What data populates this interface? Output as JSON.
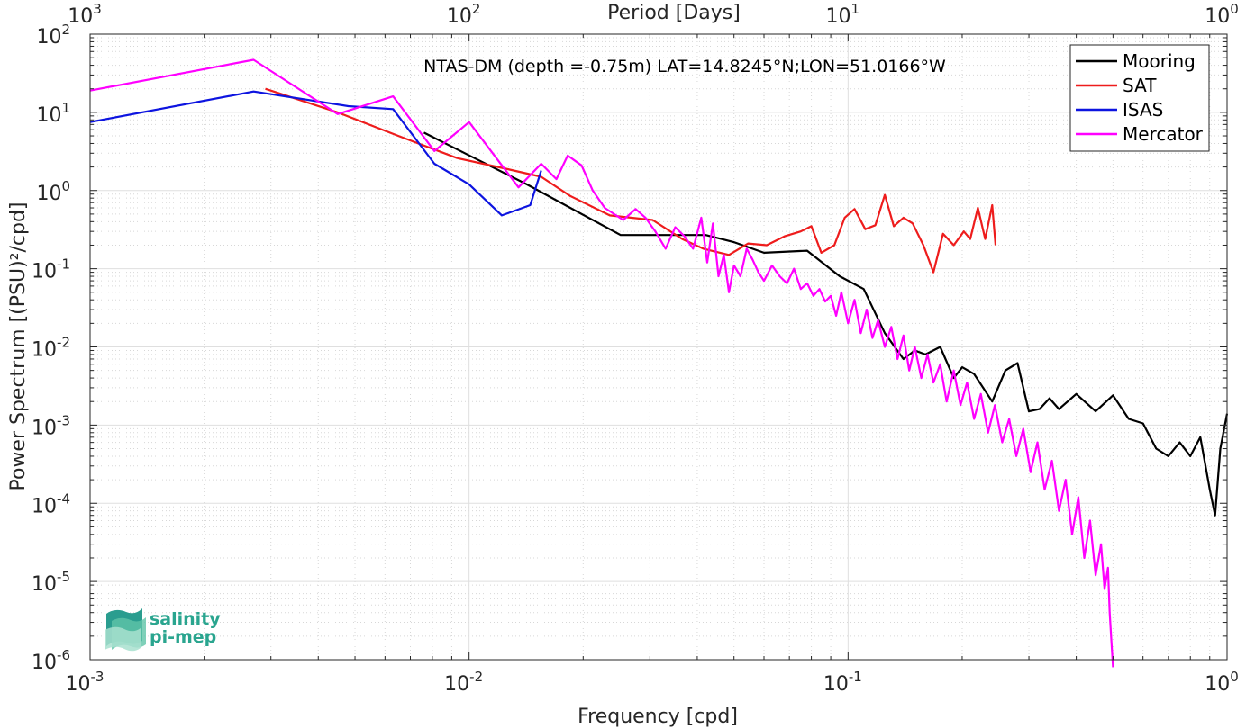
{
  "chart_data": {
    "type": "line",
    "title": "NTAS-DM (depth =-0.75m) LAT=14.8245°N;LON=51.0166°W",
    "xlabel": "Frequency [cpd]",
    "ylabel": "Power Spectrum [(PSU)²/cpd]",
    "top_axis_label": "Period [Days]",
    "x_scale": "log",
    "y_scale": "log",
    "xlim": [
      0.001,
      1
    ],
    "ylim": [
      1e-06,
      100
    ],
    "x_ticks": [
      {
        "base": "10",
        "exp": "-3"
      },
      {
        "base": "10",
        "exp": "-2"
      },
      {
        "base": "10",
        "exp": "-1"
      },
      {
        "base": "10",
        "exp": "0"
      }
    ],
    "top_ticks": [
      {
        "base": "10",
        "exp": "3"
      },
      {
        "base": "10",
        "exp": "2"
      },
      {
        "base": "10",
        "exp": "1"
      },
      {
        "base": "10",
        "exp": "0"
      }
    ],
    "y_ticks": [
      {
        "base": "10",
        "exp": "-6"
      },
      {
        "base": "10",
        "exp": "-5"
      },
      {
        "base": "10",
        "exp": "-4"
      },
      {
        "base": "10",
        "exp": "-3"
      },
      {
        "base": "10",
        "exp": "-2"
      },
      {
        "base": "10",
        "exp": "-1"
      },
      {
        "base": "10",
        "exp": "0"
      },
      {
        "base": "10",
        "exp": "1"
      },
      {
        "base": "10",
        "exp": "2"
      }
    ],
    "grid": true,
    "legend_position": "top-right",
    "series": [
      {
        "name": "Mooring",
        "color": "#000000",
        "x": [
          0.0076,
          0.0105,
          0.0142,
          0.0251,
          0.0421,
          0.0498,
          0.06,
          0.078,
          0.095,
          0.11,
          0.125,
          0.14,
          0.15,
          0.16,
          0.175,
          0.19,
          0.2,
          0.215,
          0.24,
          0.26,
          0.28,
          0.3,
          0.32,
          0.34,
          0.36,
          0.4,
          0.45,
          0.5,
          0.55,
          0.6,
          0.65,
          0.7,
          0.75,
          0.8,
          0.85,
          0.9,
          0.93,
          0.96,
          1.0
        ],
        "y": [
          5.5,
          2.5,
          1.2,
          0.27,
          0.27,
          0.22,
          0.16,
          0.17,
          0.08,
          0.055,
          0.015,
          0.007,
          0.009,
          0.008,
          0.01,
          0.004,
          0.0055,
          0.0045,
          0.002,
          0.005,
          0.0062,
          0.0015,
          0.0016,
          0.0022,
          0.0016,
          0.0025,
          0.0015,
          0.0024,
          0.0012,
          0.00105,
          0.0005,
          0.0004,
          0.0006,
          0.0004,
          0.0007,
          0.00015,
          7e-05,
          0.0005,
          0.0014
        ]
      },
      {
        "name": "SAT",
        "color": "#ee1c1c",
        "x": [
          0.0029,
          0.0045,
          0.0065,
          0.0093,
          0.0125,
          0.0155,
          0.0185,
          0.0235,
          0.0305,
          0.0365,
          0.0415,
          0.0485,
          0.0545,
          0.061,
          0.068,
          0.075,
          0.08,
          0.085,
          0.092,
          0.098,
          0.104,
          0.111,
          0.118,
          0.125,
          0.132,
          0.14,
          0.148,
          0.158,
          0.168,
          0.178,
          0.19,
          0.202,
          0.21,
          0.22,
          0.23,
          0.24,
          0.245
        ],
        "y": [
          20,
          10,
          5,
          2.6,
          1.9,
          1.5,
          0.85,
          0.48,
          0.42,
          0.24,
          0.18,
          0.15,
          0.21,
          0.2,
          0.26,
          0.3,
          0.35,
          0.16,
          0.2,
          0.45,
          0.58,
          0.32,
          0.36,
          0.88,
          0.35,
          0.45,
          0.38,
          0.2,
          0.09,
          0.28,
          0.2,
          0.3,
          0.24,
          0.6,
          0.24,
          0.65,
          0.2
        ]
      },
      {
        "name": "ISAS",
        "color": "#0d14e0",
        "x": [
          0.001,
          0.0027,
          0.0048,
          0.0063,
          0.0081,
          0.01,
          0.0122,
          0.0145,
          0.0155
        ],
        "y": [
          7.5,
          18.5,
          12,
          11,
          2.2,
          1.2,
          0.48,
          0.65,
          1.8
        ]
      },
      {
        "name": "Mercator",
        "color": "#ff00ff",
        "x": [
          0.001,
          0.0027,
          0.0045,
          0.0063,
          0.0081,
          0.01,
          0.0118,
          0.0135,
          0.0155,
          0.017,
          0.0182,
          0.0198,
          0.0212,
          0.0228,
          0.0255,
          0.0275,
          0.0292,
          0.031,
          0.033,
          0.035,
          0.037,
          0.039,
          0.041,
          0.0425,
          0.044,
          0.0455,
          0.047,
          0.0485,
          0.05,
          0.052,
          0.054,
          0.056,
          0.058,
          0.06,
          0.063,
          0.066,
          0.069,
          0.072,
          0.075,
          0.078,
          0.081,
          0.084,
          0.087,
          0.09,
          0.093,
          0.096,
          0.1,
          0.104,
          0.108,
          0.112,
          0.116,
          0.12,
          0.125,
          0.13,
          0.135,
          0.14,
          0.145,
          0.15,
          0.156,
          0.162,
          0.168,
          0.175,
          0.182,
          0.19,
          0.198,
          0.206,
          0.215,
          0.224,
          0.234,
          0.244,
          0.255,
          0.266,
          0.278,
          0.29,
          0.303,
          0.316,
          0.33,
          0.345,
          0.36,
          0.375,
          0.39,
          0.405,
          0.42,
          0.435,
          0.45,
          0.465,
          0.475,
          0.485,
          0.49,
          0.495,
          0.5
        ],
        "y": [
          19,
          47,
          9.5,
          16,
          3.2,
          7.5,
          2.6,
          1.1,
          2.2,
          1.4,
          2.8,
          2.1,
          1.0,
          0.6,
          0.42,
          0.58,
          0.45,
          0.3,
          0.18,
          0.34,
          0.26,
          0.18,
          0.45,
          0.12,
          0.38,
          0.08,
          0.15,
          0.05,
          0.11,
          0.08,
          0.18,
          0.13,
          0.09,
          0.07,
          0.11,
          0.08,
          0.065,
          0.1,
          0.055,
          0.065,
          0.045,
          0.055,
          0.038,
          0.045,
          0.025,
          0.05,
          0.02,
          0.04,
          0.015,
          0.03,
          0.013,
          0.022,
          0.01,
          0.018,
          0.007,
          0.014,
          0.005,
          0.01,
          0.004,
          0.008,
          0.0035,
          0.006,
          0.002,
          0.005,
          0.0018,
          0.0035,
          0.0012,
          0.0025,
          0.0008,
          0.0018,
          0.0006,
          0.0012,
          0.0004,
          0.0009,
          0.00025,
          0.0006,
          0.00015,
          0.00035,
          8e-05,
          0.0002,
          4e-05,
          0.00012,
          2e-05,
          6e-05,
          1.2e-05,
          3e-05,
          8e-06,
          1.5e-05,
          4e-06,
          1.8e-06,
          8e-07
        ]
      }
    ]
  },
  "logo": {
    "line1": "salinity",
    "line2": "pi-mep"
  }
}
